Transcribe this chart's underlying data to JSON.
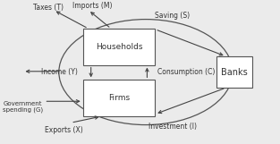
{
  "bg_color": "#ebebeb",
  "box_color": "#ffffff",
  "box_edge": "#555555",
  "text_color": "#333333",
  "arrow_color": "#444444",
  "labels": {
    "households": "Households",
    "firms": "Firms",
    "banks": "Banks",
    "imports": "Imports (M)",
    "taxes": "Taxes (T)",
    "saving": "Saving (S)",
    "income": "Income (Y)",
    "consumption": "Consumption (C)",
    "govt": "Government\nspending (G)",
    "exports": "Exports (X)",
    "investment": "Investment (I)"
  }
}
